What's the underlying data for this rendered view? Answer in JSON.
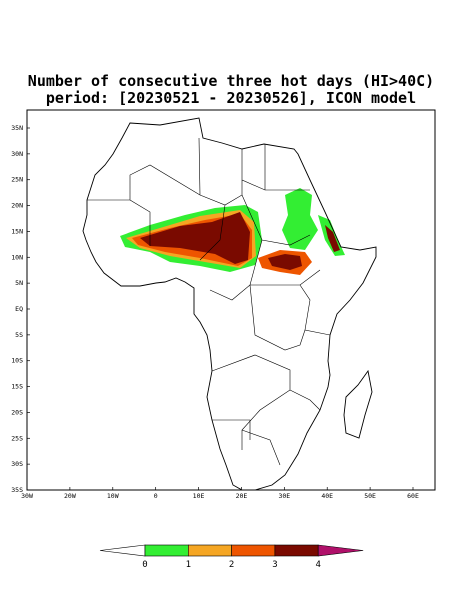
{
  "title": [
    "Number of consecutive three hot days (HI>40C)",
    "period: [20230521 - 20230526], ICON model"
  ],
  "map": {
    "x_labels": [
      "30W",
      "20W",
      "10W",
      "0",
      "10E",
      "20E",
      "30E",
      "40E",
      "50E",
      "60E"
    ],
    "y_labels": [
      "35N",
      "30N",
      "25N",
      "20N",
      "15N",
      "10N",
      "5N",
      "EQ",
      "5S",
      "10S",
      "15S",
      "20S",
      "25S",
      "30S",
      "35S"
    ]
  },
  "colorbar": {
    "labels": [
      0,
      1,
      2,
      3,
      4
    ],
    "colors": [
      "#ffffff",
      "#33ee33",
      "#f5a623",
      "#ee5500",
      "#7a0a00",
      "#b0106a"
    ]
  }
}
